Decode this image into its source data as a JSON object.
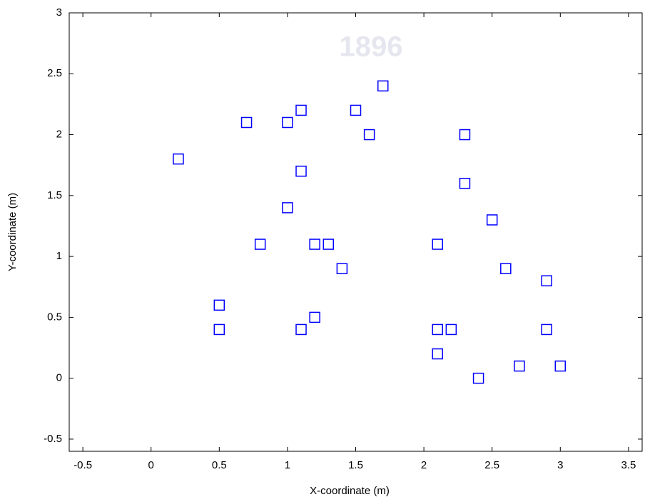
{
  "chart_data": {
    "type": "scatter",
    "watermark": "1896",
    "xlabel": "X-coordinate (m)",
    "ylabel": "Y-coordinate (m)",
    "x": [
      0.2,
      0.5,
      0.5,
      0.7,
      0.8,
      1.0,
      1.0,
      1.1,
      1.1,
      1.1,
      1.2,
      1.2,
      1.3,
      1.4,
      1.5,
      1.6,
      1.7,
      2.1,
      2.1,
      2.1,
      2.2,
      2.3,
      2.3,
      2.4,
      2.5,
      2.6,
      2.7,
      2.9,
      2.9,
      3.0
    ],
    "values": [
      1.8,
      0.6,
      0.4,
      2.1,
      1.1,
      2.1,
      1.4,
      2.2,
      1.7,
      0.4,
      1.1,
      0.5,
      1.1,
      0.9,
      2.2,
      2.0,
      2.4,
      1.1,
      0.4,
      0.2,
      0.4,
      2.0,
      1.6,
      0.0,
      1.3,
      0.9,
      0.1,
      0.8,
      0.4,
      0.1
    ],
    "color": "#0000ff",
    "marker": "square",
    "xlim": [
      -0.6,
      3.6
    ],
    "xticks": [
      -0.5,
      0,
      0.5,
      1,
      1.5,
      2,
      2.5,
      3,
      3.5
    ],
    "ylim": [
      -0.6,
      3
    ],
    "yticks": [
      -0.5,
      0,
      0.5,
      1,
      1.5,
      2,
      2.5,
      3
    ],
    "grid": false
  }
}
